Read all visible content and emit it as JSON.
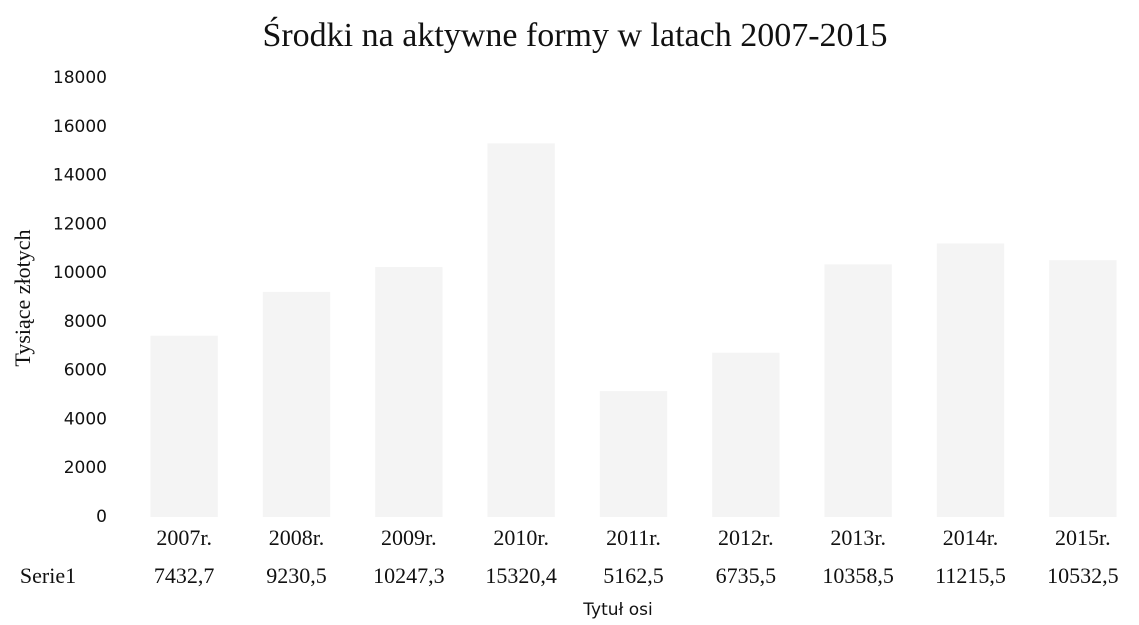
{
  "chart_data": {
    "type": "bar",
    "title": "Środki na aktywne formy w latach 2007-2015",
    "y_label": "Tysiące złotych",
    "x_label": "Tytuł osi",
    "categories": [
      "2007r.",
      "2008r.",
      "2009r.",
      "2010r.",
      "2011r.",
      "2012r.",
      "2013r.",
      "2014r.",
      "2015r."
    ],
    "series": [
      {
        "name": "Serie1",
        "color": "#ececec",
        "values": [
          7432.7,
          9230.5,
          10247.3,
          15320.4,
          5162.5,
          6735.5,
          10358.5,
          11215.5,
          10532.5
        ],
        "value_labels": [
          "7432,7",
          "9230,5",
          "10247,3",
          "15320,4",
          "5162,5",
          "6735,5",
          "10358,5",
          "11215,5",
          "10532,5"
        ]
      }
    ],
    "ylim": [
      0,
      18000
    ],
    "yticks": [
      0,
      2000,
      4000,
      6000,
      8000,
      10000,
      12000,
      14000,
      16000,
      18000
    ],
    "grid": false
  }
}
